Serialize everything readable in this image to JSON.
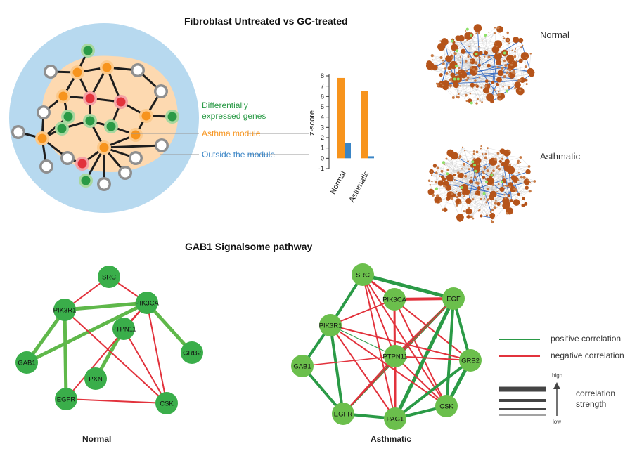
{
  "titles": {
    "top": "Fibroblast Untreated vs GC-treated",
    "bottom": "GAB1 Signalsome pathway"
  },
  "module_legend": {
    "differential_line1": "Differentially",
    "differential_line2": "expressed genes",
    "asthma": "Asthma module",
    "outside": "Outside the module"
  },
  "colors": {
    "orange": "#f7941d",
    "blue": "#3a85c6",
    "green": "#2a9a46",
    "red": "#e2323c",
    "circle_bg": "#b7d9ef"
  },
  "chart_data": {
    "type": "bar",
    "ylabel": "z-score",
    "ylim": [
      -1,
      8
    ],
    "yticks": [
      "-1",
      "0",
      "1",
      "2",
      "3",
      "4",
      "5",
      "6",
      "7",
      "8"
    ],
    "categories": [
      "Normal",
      "Asthmatic"
    ],
    "series": [
      {
        "name": "Asthma module",
        "values": [
          7.8,
          6.5
        ]
      },
      {
        "name": "Outside the module",
        "values": [
          1.5,
          0.2
        ]
      }
    ]
  },
  "networks": {
    "normal_label": "Normal",
    "asthmatic_label": "Asthmatic"
  },
  "pathway": {
    "normal_title": "Normal",
    "asthmatic_title": "Asthmatic",
    "normal_nodes": [
      "SRC",
      "PIK3R1",
      "PIK3CA",
      "PTPN11",
      "GAB1",
      "PXN",
      "GRB2",
      "EGFR",
      "CSK"
    ],
    "asthmatic_nodes": [
      "SRC",
      "PIK3CA",
      "EGF",
      "PIK3R1",
      "PTPN11",
      "GRB2",
      "GAB1",
      "EGFR",
      "PAG1",
      "CSK"
    ]
  },
  "correlation_legend": {
    "positive": "positive correlation",
    "negative": "negative correlation",
    "high": "high",
    "low": "low",
    "strength_line1": "correlation",
    "strength_line2": "strength"
  }
}
